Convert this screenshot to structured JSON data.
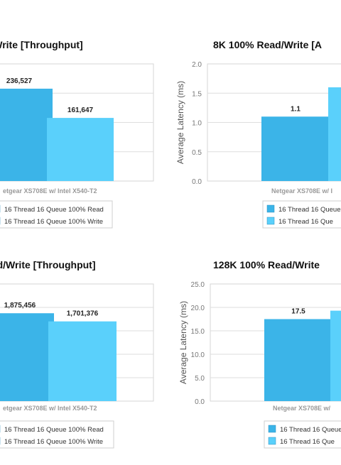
{
  "charts": [
    {
      "type": "bar",
      "title": "ad/Write [Throughput]",
      "ylabel": "",
      "category": "etgear XS708E w/ Intel X540-T2",
      "ylim": [
        0,
        300000
      ],
      "gridlines": 4,
      "yticks": [],
      "series": [
        {
          "name": "16 Thread 16 Queue 100% Read",
          "values": [
            236527
          ],
          "color": "#3bb4e8"
        },
        {
          "name": "16 Thread 16 Queue 100% Write",
          "values": [
            161647
          ],
          "color": "#5ad0fb"
        }
      ],
      "data_labels": [
        "236,527",
        "161,647"
      ]
    },
    {
      "type": "bar",
      "title": "8K 100% Read/Write [A",
      "ylabel": "Average Latency (ms)",
      "category": "Netgear XS708E w/ I",
      "ylim": [
        0,
        2.0
      ],
      "gridlines": 4,
      "yticks": [
        "2.0",
        "1.5",
        "1.0",
        "0.5",
        "0.0"
      ],
      "series": [
        {
          "name": "16 Thread 16 Queue",
          "values": [
            1.1
          ],
          "color": "#3bb4e8"
        },
        {
          "name": "16 Thread 16 Que",
          "values": [
            1.6
          ],
          "color": "#5ad0fb"
        }
      ],
      "data_labels": [
        "1.1",
        ""
      ]
    },
    {
      "type": "bar",
      "title": "ead/Write [Throughput]",
      "ylabel": "",
      "category": "etgear XS708E w/ Intel X540-T2",
      "ylim": [
        0,
        2500000
      ],
      "gridlines": 5,
      "yticks": [],
      "series": [
        {
          "name": "16 Thread 16 Queue 100% Read",
          "values": [
            1875456
          ],
          "color": "#3bb4e8"
        },
        {
          "name": "16 Thread 16 Queue 100% Write",
          "values": [
            1701376
          ],
          "color": "#5ad0fb"
        }
      ],
      "data_labels": [
        "1,875,456",
        "1,701,376"
      ]
    },
    {
      "type": "bar",
      "title": "128K 100% Read/Write",
      "ylabel": "Average Latency (ms)",
      "category": "Netgear XS708E w/",
      "ylim": [
        0,
        25.0
      ],
      "gridlines": 5,
      "yticks": [
        "25.0",
        "20.0",
        "15.0",
        "10.0",
        "5.0",
        "0.0"
      ],
      "series": [
        {
          "name": "16 Thread 16 Queue",
          "values": [
            17.5
          ],
          "color": "#3bb4e8"
        },
        {
          "name": "16 Thread 16 Que",
          "values": [
            19.3
          ],
          "color": "#5ad0fb"
        }
      ],
      "data_labels": [
        "17.5",
        ""
      ]
    }
  ]
}
